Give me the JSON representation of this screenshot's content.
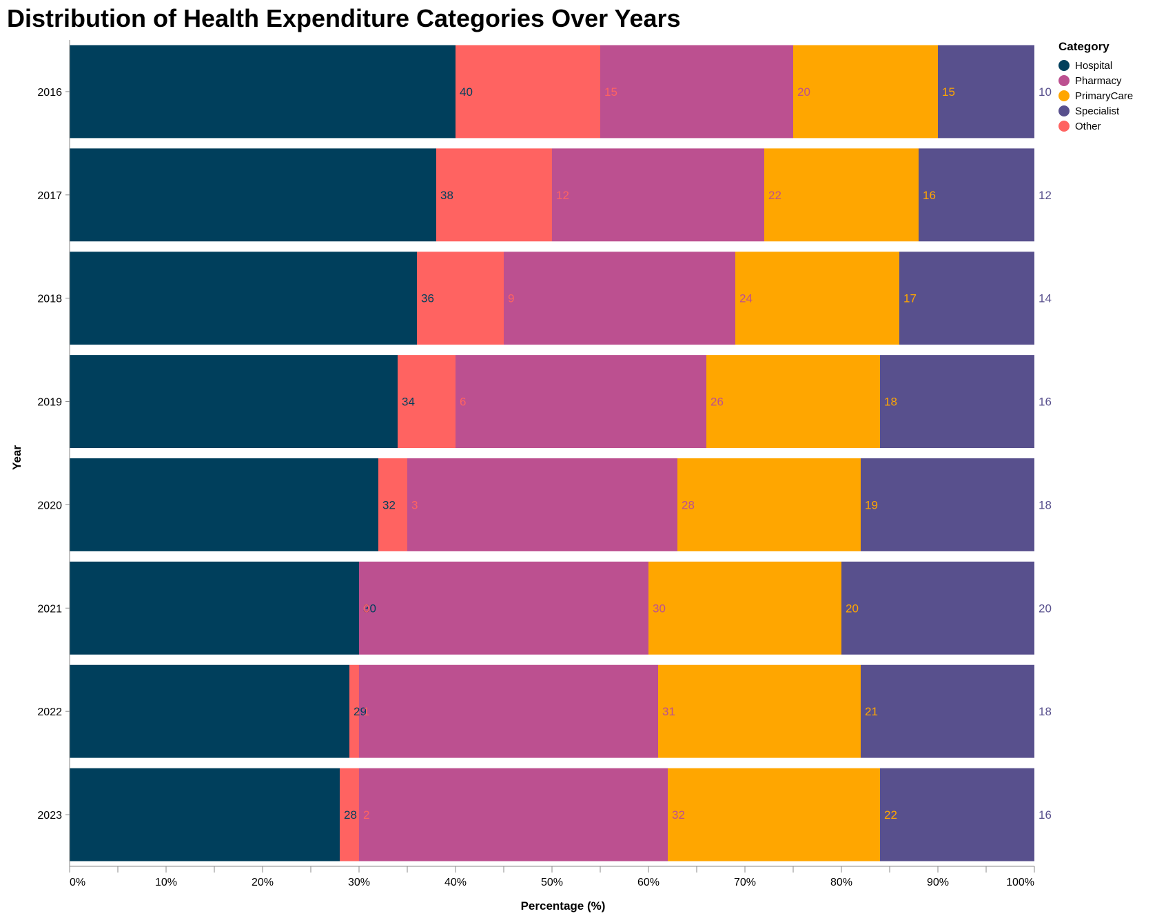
{
  "chart_data": {
    "type": "bar",
    "orientation": "horizontal",
    "stacked": "normalized",
    "title": "Distribution of Health Expenditure Categories Over Years",
    "xlabel": "Percentage (%)",
    "ylabel": "Year",
    "xlim": [
      0,
      100
    ],
    "x_ticks": [
      "0%",
      "10%",
      "20%",
      "30%",
      "40%",
      "50%",
      "60%",
      "70%",
      "80%",
      "90%",
      "100%"
    ],
    "grid": false,
    "legend": {
      "title": "Category",
      "placement": "top-right",
      "entries": [
        "Hospital",
        "Pharmacy",
        "PrimaryCare",
        "Specialist",
        "Other"
      ]
    },
    "categories": [
      "2016",
      "2017",
      "2018",
      "2019",
      "2020",
      "2021",
      "2022",
      "2023"
    ],
    "stack_order": [
      "Hospital",
      "Other",
      "Pharmacy",
      "PrimaryCare",
      "Specialist"
    ],
    "series": [
      {
        "name": "Hospital",
        "color": "#003f5c",
        "values": [
          40,
          38,
          36,
          34,
          32,
          30,
          29,
          28
        ]
      },
      {
        "name": "Pharmacy",
        "color": "#bc5090",
        "values": [
          20,
          22,
          24,
          26,
          28,
          30,
          31,
          32
        ]
      },
      {
        "name": "PrimaryCare",
        "color": "#ffa600",
        "values": [
          15,
          16,
          17,
          18,
          19,
          20,
          21,
          22
        ]
      },
      {
        "name": "Specialist",
        "color": "#58508d",
        "values": [
          10,
          12,
          14,
          16,
          18,
          20,
          18,
          16
        ]
      },
      {
        "name": "Other",
        "color": "#ff6361",
        "values": [
          15,
          12,
          9,
          6,
          3,
          0,
          1,
          2
        ]
      }
    ]
  }
}
